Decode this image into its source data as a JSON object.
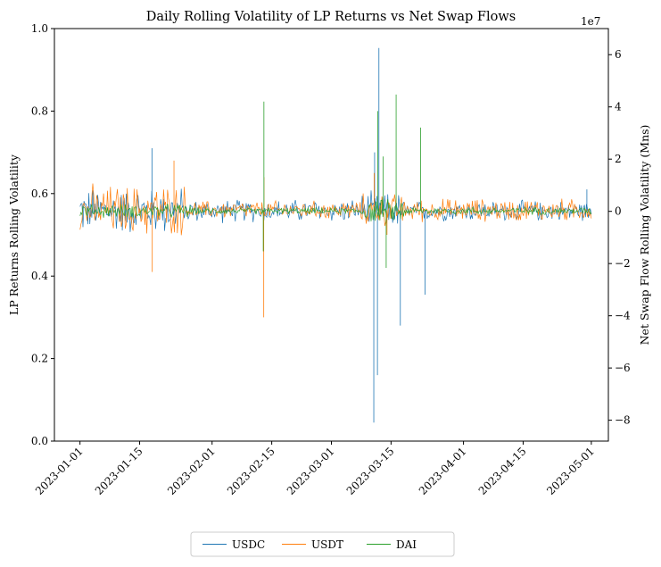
{
  "chart_data": {
    "type": "line",
    "title": "Daily Rolling Volatility of LP Returns vs Net Swap Flows",
    "xlabel": "",
    "ylabel_left": "LP Returns Rolling Volatility",
    "ylabel_right": "Net Swap Flow Rolling Volatility (Mns)",
    "right_axis_offset_text": "1e7",
    "x_range": [
      "2022-12-26",
      "2023-05-05"
    ],
    "x_ticks": [
      "2023-01-01",
      "2023-01-15",
      "2023-02-01",
      "2023-02-15",
      "2023-03-01",
      "2023-03-15",
      "2023-04-01",
      "2023-04-15",
      "2023-05-01"
    ],
    "ylim_left": [
      0.0,
      1.0
    ],
    "yticks_left": [
      "0.0",
      "0.2",
      "0.4",
      "0.6",
      "0.8",
      "1.0"
    ],
    "ylim_right": [
      -8.8,
      7.0
    ],
    "yticks_right": [
      {
        "value": -8,
        "label": "−8"
      },
      {
        "value": -6,
        "label": "−6"
      },
      {
        "value": -4,
        "label": "−4"
      },
      {
        "value": -2,
        "label": "−2"
      },
      {
        "value": 0,
        "label": "0"
      },
      {
        "value": 2,
        "label": "2"
      },
      {
        "value": 4,
        "label": "4"
      },
      {
        "value": 6,
        "label": "6"
      }
    ],
    "grid": false,
    "legend_position": "bottom-center-outside",
    "series": [
      {
        "name": "USDC",
        "color": "#1f77b4",
        "baseline": 0.558,
        "noise_profile": [
          {
            "start": "2023-01-01",
            "end": "2023-01-25",
            "amplitude": 0.05
          },
          {
            "start": "2023-01-25",
            "end": "2023-03-08",
            "amplitude": 0.025
          },
          {
            "start": "2023-03-08",
            "end": "2023-03-18",
            "amplitude": 0.04
          },
          {
            "start": "2023-03-18",
            "end": "2023-05-01",
            "amplitude": 0.022
          }
        ],
        "spikes": [
          {
            "x": "2023-01-18",
            "y": 0.71
          },
          {
            "x": "2023-03-11",
            "y": 0.7
          },
          {
            "x": "2023-03-11",
            "y": 0.045
          },
          {
            "x": "2023-03-12",
            "y": 0.953
          },
          {
            "x": "2023-03-12",
            "y": 0.16
          },
          {
            "x": "2023-03-17",
            "y": 0.28
          },
          {
            "x": "2023-03-23",
            "y": 0.355
          },
          {
            "x": "2023-04-30",
            "y": 0.61
          }
        ]
      },
      {
        "name": "USDT",
        "color": "#ff7f0e",
        "baseline": 0.56,
        "noise_profile": [
          {
            "start": "2023-01-01",
            "end": "2023-01-26",
            "amplitude": 0.055
          },
          {
            "start": "2023-01-26",
            "end": "2023-03-08",
            "amplitude": 0.02
          },
          {
            "start": "2023-03-08",
            "end": "2023-03-18",
            "amplitude": 0.035
          },
          {
            "start": "2023-03-18",
            "end": "2023-05-01",
            "amplitude": 0.025
          }
        ],
        "spikes": [
          {
            "x": "2023-01-18",
            "y": 0.41
          },
          {
            "x": "2023-01-23",
            "y": 0.68
          },
          {
            "x": "2023-02-13",
            "y": 0.3
          },
          {
            "x": "2023-02-13",
            "y": 0.64
          },
          {
            "x": "2023-03-11",
            "y": 0.65
          },
          {
            "x": "2023-03-14",
            "y": 0.5
          }
        ]
      },
      {
        "name": "DAI",
        "color": "#2ca02c",
        "baseline": 0.558,
        "noise_profile": [
          {
            "start": "2023-01-01",
            "end": "2023-01-28",
            "amplitude": 0.015
          },
          {
            "start": "2023-01-28",
            "end": "2023-03-08",
            "amplitude": 0.007
          },
          {
            "start": "2023-03-08",
            "end": "2023-03-18",
            "amplitude": 0.025
          },
          {
            "start": "2023-03-18",
            "end": "2023-05-01",
            "amplitude": 0.008
          }
        ],
        "spikes": [
          {
            "x": "2023-02-13",
            "y": 0.823
          },
          {
            "x": "2023-02-13",
            "y": 0.46
          },
          {
            "x": "2023-03-12",
            "y": 0.8
          },
          {
            "x": "2023-03-13",
            "y": 0.69
          },
          {
            "x": "2023-03-14",
            "y": 0.42
          },
          {
            "x": "2023-03-16",
            "y": 0.84
          },
          {
            "x": "2023-03-22",
            "y": 0.76
          }
        ]
      }
    ]
  }
}
